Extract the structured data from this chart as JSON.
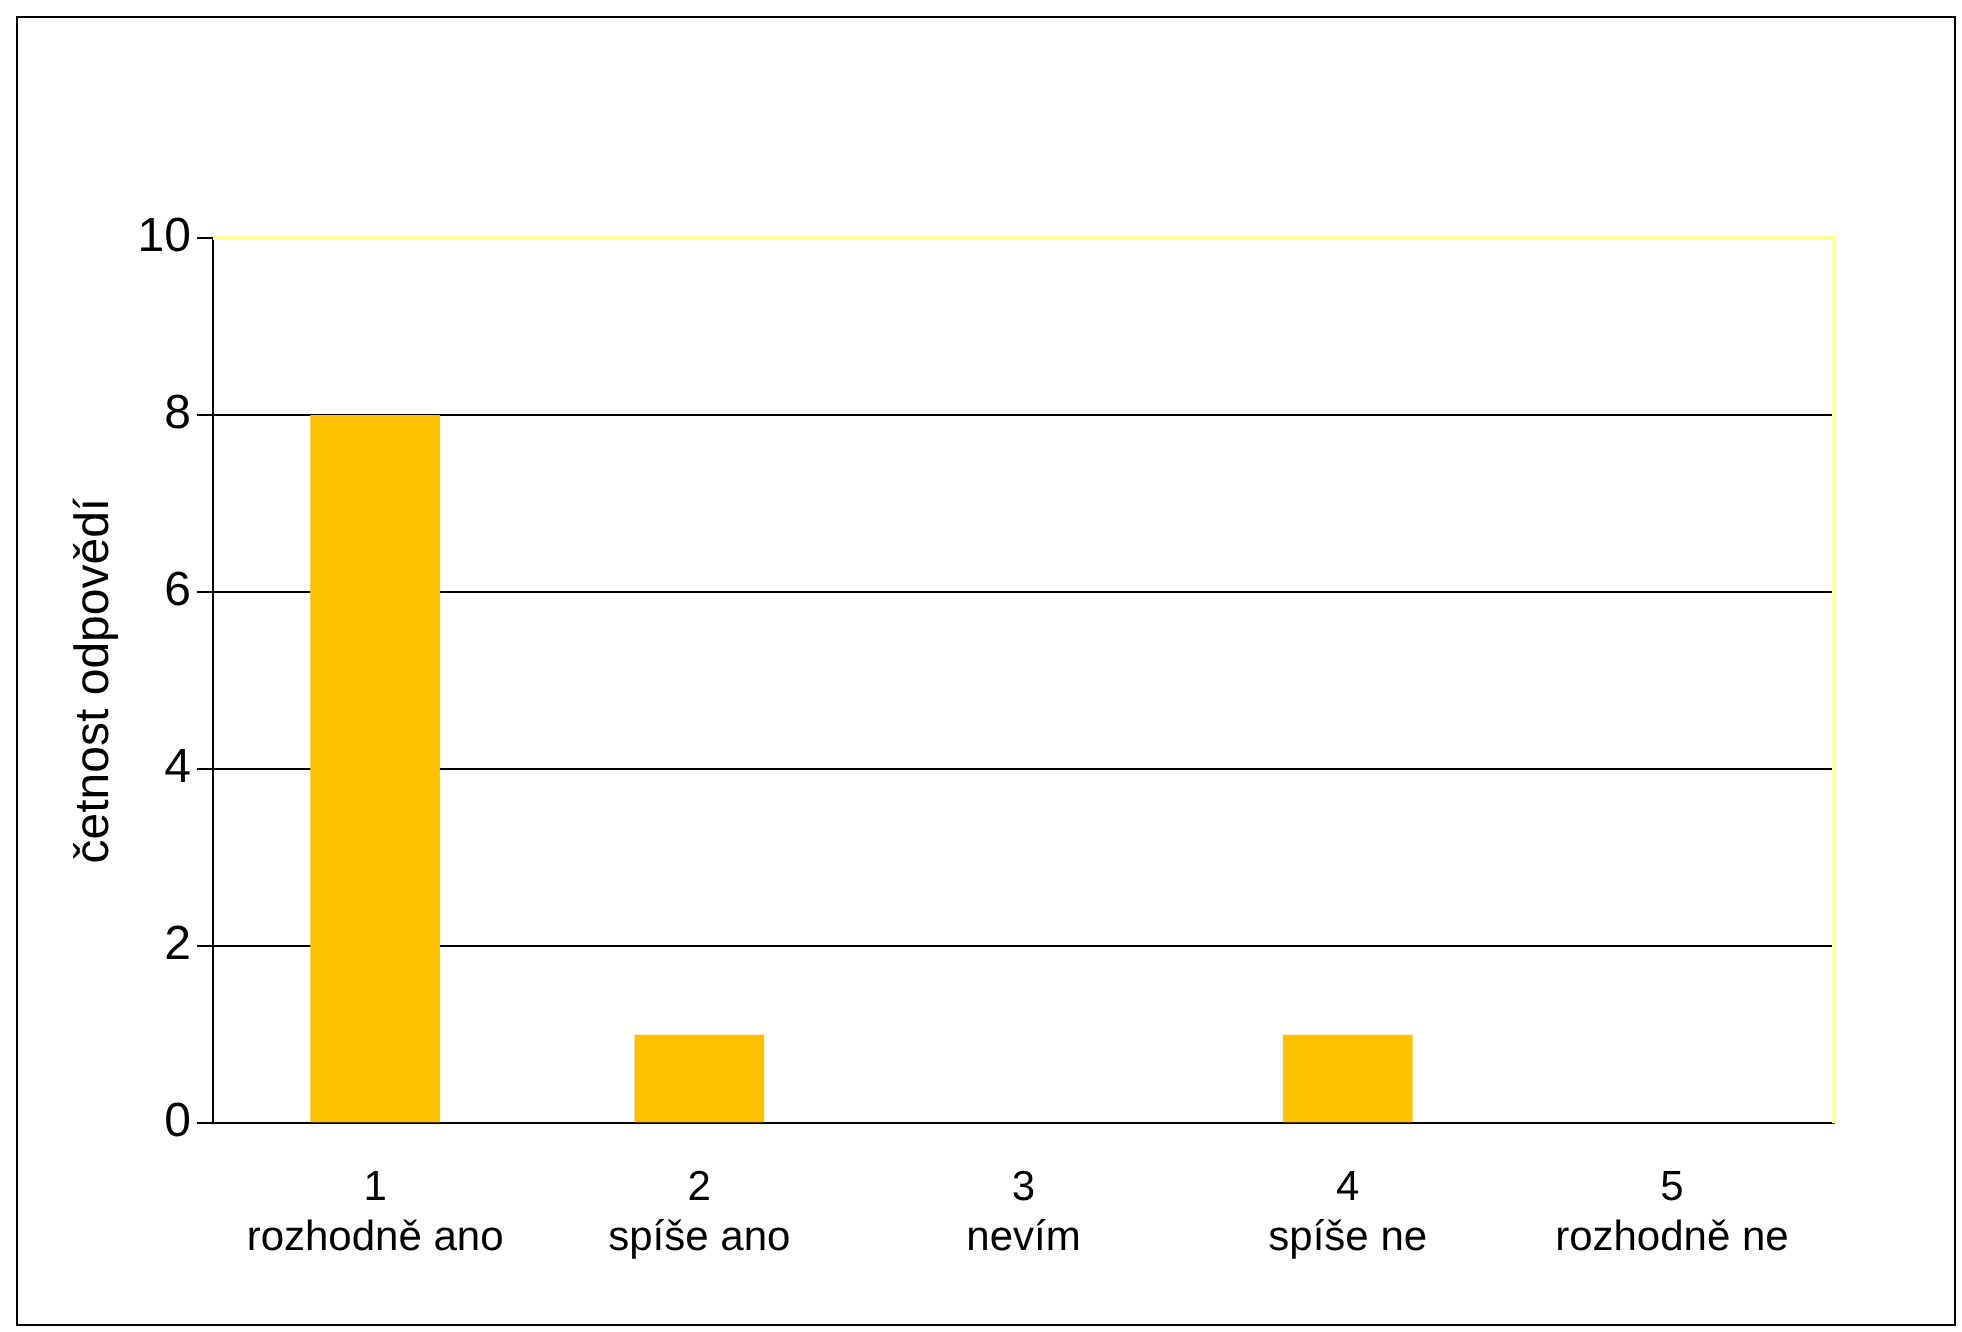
{
  "chart_data": {
    "type": "bar",
    "ylabel": "četnost odpovědí",
    "categories": [
      "1\nrozhodně ano",
      "2\nspíše ano",
      "3\nnevím",
      "4\nspíše ne",
      "5\nrozhodně ne"
    ],
    "values": [
      8,
      1,
      0,
      1,
      0
    ],
    "color": "#ffc000",
    "ylim": [
      0,
      10
    ],
    "yticks": [
      0,
      2,
      4,
      6,
      8,
      10
    ],
    "grid": "y",
    "legend": false
  }
}
